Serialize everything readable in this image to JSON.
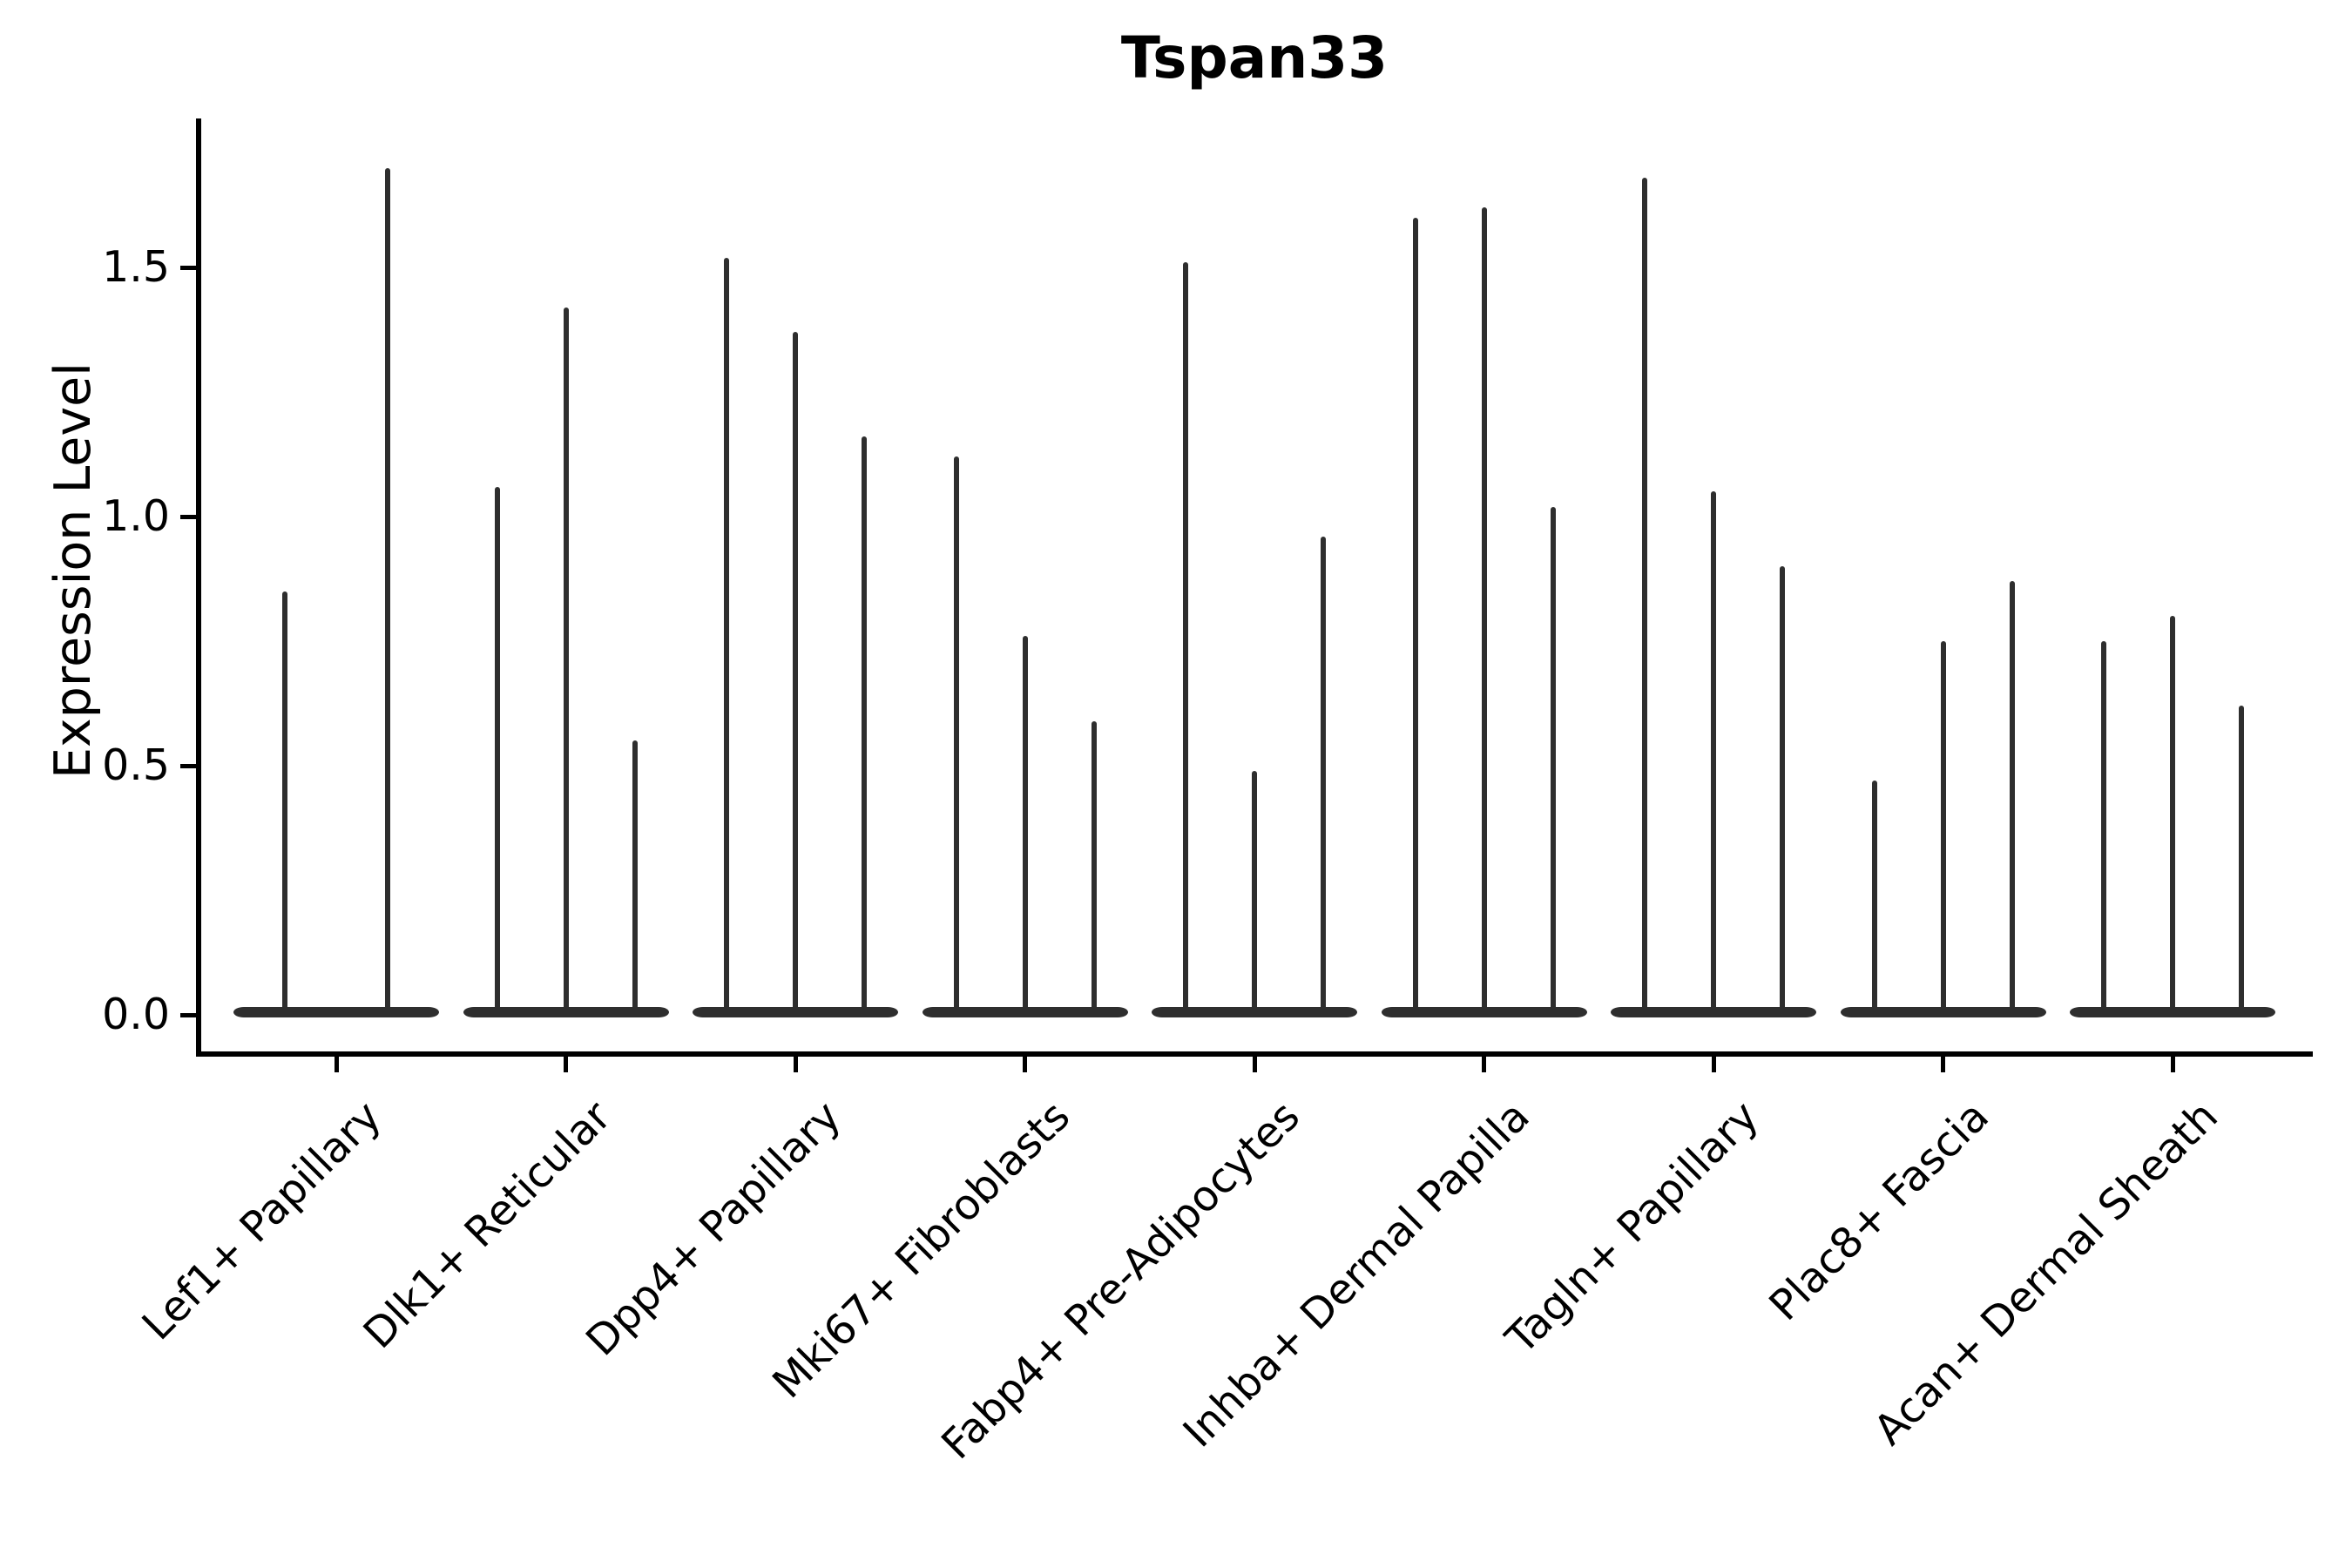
{
  "title": "Tspan33",
  "ylabel": "Expression Level",
  "chart_data": {
    "type": "violin",
    "title": "Tspan33",
    "xlabel": "",
    "ylabel": "Expression Level",
    "ylim": [
      -0.07,
      1.8
    ],
    "yticks": [
      0.0,
      0.5,
      1.0,
      1.5
    ],
    "ytick_labels": [
      "0.0",
      "0.5",
      "1.0",
      "1.5"
    ],
    "grid": "off",
    "legend": "none",
    "xtick_rotation_deg": 45,
    "violin_color": "#2e2e2e",
    "description": "Stacked-violin style expression plot; each cluster has narrow-spike violins (bulk of cells at 0) whose values are the maximum expression level reached by each violin spike",
    "categories": [
      "Lef1+ Papillary",
      "Dlk1+ Reticular",
      "Dpp4+ Papillary",
      "Mki67+ Fibroblasts",
      "Fabp4+ Pre-Adipocytes",
      "Inhba+ Dermal Papilla",
      "Tagln+ Papillary",
      "Plac8+ Fascia",
      "Acan+ Dermal Sheath"
    ],
    "groups": [
      {
        "label": "Lef1+ Papillary",
        "violin_maxima": [
          0.85,
          1.7
        ]
      },
      {
        "label": "Dlk1+ Reticular",
        "violin_maxima": [
          1.06,
          1.42,
          0.55
        ]
      },
      {
        "label": "Dpp4+ Papillary",
        "violin_maxima": [
          1.52,
          1.37,
          1.16
        ]
      },
      {
        "label": "Mki67+ Fibroblasts",
        "violin_maxima": [
          1.12,
          0.76,
          0.59
        ]
      },
      {
        "label": "Fabp4+ Pre-Adipocytes",
        "violin_maxima": [
          1.51,
          0.49,
          0.96
        ]
      },
      {
        "label": "Inhba+ Dermal Papilla",
        "violin_maxima": [
          1.6,
          1.62,
          1.02
        ]
      },
      {
        "label": "Tagln+ Papillary",
        "violin_maxima": [
          1.68,
          1.05,
          0.9
        ]
      },
      {
        "label": "Plac8+ Fascia",
        "violin_maxima": [
          0.47,
          0.75,
          0.87
        ]
      },
      {
        "label": "Acan+ Dermal Sheath",
        "violin_maxima": [
          0.75,
          0.8,
          0.62
        ]
      }
    ]
  }
}
